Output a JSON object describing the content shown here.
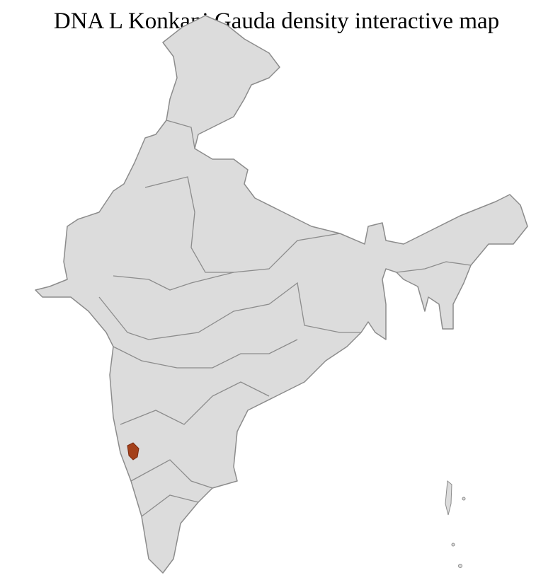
{
  "title": "DNA L Konkani Gauda density interactive map",
  "colors": {
    "land": "#dcdcdc",
    "border": "#8c8c8c",
    "highlight": "#a4411b"
  },
  "highlighted_regions": 1
}
